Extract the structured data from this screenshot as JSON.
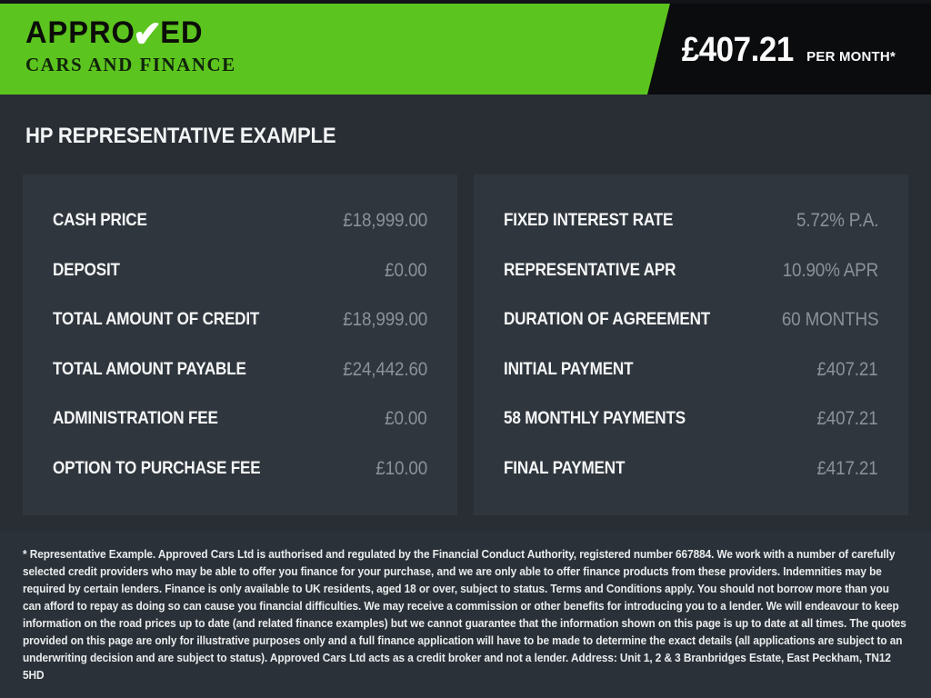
{
  "header": {
    "logo": {
      "line1_pre": "APPRO",
      "check": "✔",
      "line1_post": "ED",
      "line2": "CARS AND FINANCE"
    },
    "price": "£407.21",
    "price_suffix": "PER MONTH*"
  },
  "main": {
    "title": "HP REPRESENTATIVE EXAMPLE",
    "panels": {
      "left": {
        "rows": [
          {
            "label": "CASH PRICE",
            "value": "£18,999.00"
          },
          {
            "label": "DEPOSIT",
            "value": "£0.00"
          },
          {
            "label": "TOTAL AMOUNT OF CREDIT",
            "value": "£18,999.00"
          },
          {
            "label": "TOTAL AMOUNT PAYABLE",
            "value": "£24,442.60"
          },
          {
            "label": "ADMINISTRATION FEE",
            "value": "£0.00"
          },
          {
            "label": "OPTION TO PURCHASE FEE",
            "value": "£10.00"
          }
        ]
      },
      "right": {
        "rows": [
          {
            "label": "FIXED INTEREST RATE",
            "value": "5.72% P.A."
          },
          {
            "label": "REPRESENTATIVE APR",
            "value": "10.90% APR"
          },
          {
            "label": "DURATION OF AGREEMENT",
            "value": "60 MONTHS"
          },
          {
            "label": "INITIAL PAYMENT",
            "value": "£407.21"
          },
          {
            "label": "58 MONTHLY PAYMENTS",
            "value": "£407.21"
          },
          {
            "label": "FINAL PAYMENT",
            "value": "£417.21"
          }
        ]
      }
    }
  },
  "footer": {
    "disclaimer": "* Representative Example. Approved Cars Ltd is authorised and regulated by the Financial Conduct Authority, registered number 667884. We work with a number of carefully selected credit providers who may be able to offer you finance for your purchase, and we are only able to offer finance products from these providers. Indemnities may be required by certain lenders. Finance is only available to UK residents, aged 18 or over, subject to status. Terms and Conditions apply. You should not borrow more than you can afford to repay as doing so can cause you financial difficulties. We may receive a commission or other benefits for introducing you to a lender. We will endeavour to keep information on the road prices up to date (and related finance examples) but we cannot guarantee that the information shown on this page is up to date at all times. The quotes provided on this page are only for illustrative purposes only and a full finance application will have to be made to determine the exact details (all applications are subject to an underwriting decision and are subject to status). Approved Cars Ltd acts as a credit broker and not a lender. Address: Unit 1, 2 & 3 Branbridges Estate, East Peckham, TN12 5HD"
  },
  "colors": {
    "brand_green": "#5cc41e",
    "header_black": "#0b0c0e",
    "body_background": "#282e34",
    "panel_background": "#2f363d",
    "footer_background": "#2b3138",
    "label_text": "#f5f6f7",
    "value_text": "#8b9199"
  }
}
